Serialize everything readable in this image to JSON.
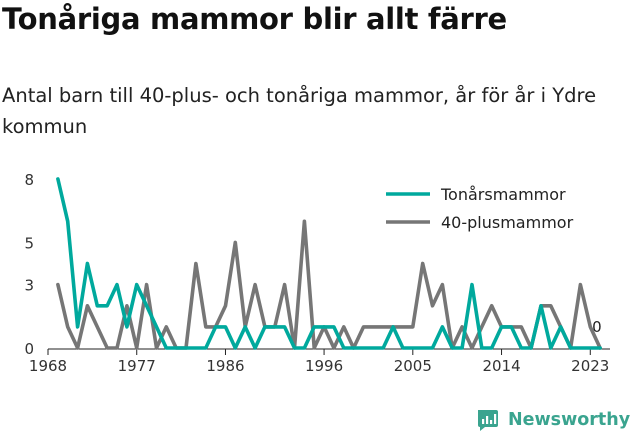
{
  "title": "Tonåriga mammor blir allt färre",
  "subtitle": "Antal barn till 40-plus- och tonåriga mammor, år för år i Ydre kommun",
  "brand": {
    "name": "Newsworthy",
    "icon": "newsworthy-logo-icon",
    "color": "#3aa48f"
  },
  "chart_data": {
    "type": "line",
    "x": [
      1969,
      1970,
      1971,
      1972,
      1973,
      1974,
      1975,
      1976,
      1977,
      1978,
      1979,
      1980,
      1981,
      1982,
      1983,
      1984,
      1985,
      1986,
      1987,
      1988,
      1989,
      1990,
      1991,
      1992,
      1993,
      1994,
      1995,
      1996,
      1997,
      1998,
      1999,
      2000,
      2001,
      2002,
      2003,
      2004,
      2005,
      2006,
      2007,
      2008,
      2009,
      2010,
      2011,
      2012,
      2013,
      2014,
      2015,
      2016,
      2017,
      2018,
      2019,
      2020,
      2021,
      2022,
      2023,
      2024
    ],
    "series": [
      {
        "name": "Tonårsmammor",
        "color": "#00a99d",
        "values": [
          8,
          6,
          1,
          4,
          2,
          2,
          3,
          1,
          3,
          2,
          1,
          0,
          0,
          0,
          0,
          0,
          1,
          1,
          0,
          1,
          0,
          1,
          1,
          1,
          0,
          0,
          1,
          1,
          1,
          0,
          0,
          0,
          0,
          0,
          1,
          0,
          0,
          0,
          0,
          1,
          0,
          0,
          3,
          0,
          0,
          1,
          1,
          0,
          0,
          2,
          0,
          1,
          0,
          0,
          0,
          0
        ]
      },
      {
        "name": "40-plusmammor",
        "color": "#767676",
        "values": [
          3,
          1,
          0,
          2,
          1,
          0,
          0,
          2,
          0,
          3,
          0,
          1,
          0,
          0,
          4,
          1,
          1,
          2,
          5,
          1,
          3,
          1,
          1,
          3,
          0,
          6,
          0,
          1,
          0,
          1,
          0,
          1,
          1,
          1,
          1,
          1,
          1,
          4,
          2,
          3,
          0,
          1,
          0,
          1,
          2,
          1,
          1,
          1,
          0,
          2,
          2,
          1,
          0,
          3,
          1,
          0
        ]
      }
    ],
    "xticks": [
      1968,
      1977,
      1986,
      1996,
      2005,
      2014,
      2023
    ],
    "yticks": [
      0,
      3,
      5,
      8
    ],
    "xlim": [
      1968,
      2025
    ],
    "ylim": [
      0,
      8
    ],
    "last_value_label": "0",
    "legend_position": "top-right",
    "grid": false
  }
}
